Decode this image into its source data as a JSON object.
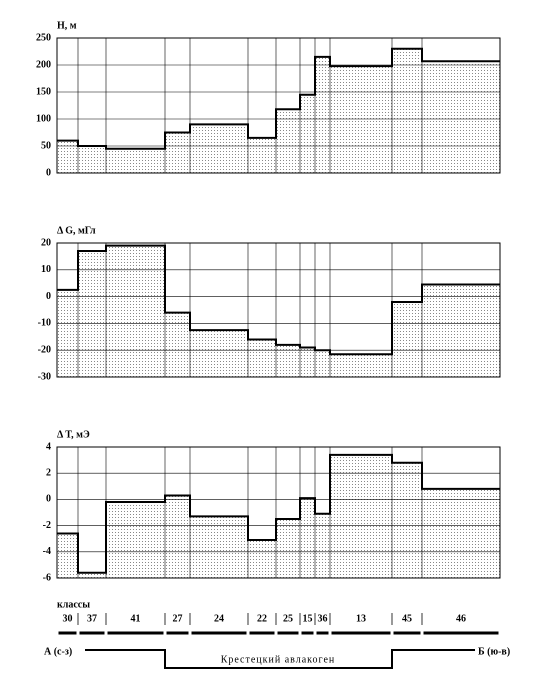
{
  "chart_data": [
    {
      "type": "step",
      "title": "H, м",
      "values": [
        60,
        50,
        45,
        75,
        90,
        65,
        118,
        145,
        215,
        198,
        230,
        207
      ],
      "ylim": [
        0,
        250
      ],
      "yticks": [
        0,
        50,
        100,
        150,
        200,
        250
      ],
      "grid": true,
      "color": "#000000"
    },
    {
      "type": "step",
      "title": "Δ G, мГл",
      "values": [
        2.5,
        17,
        19,
        -6,
        -12.5,
        -16,
        -18,
        -19,
        -20,
        -21.5,
        -2,
        4.5
      ],
      "ylim": [
        -30,
        20
      ],
      "yticks": [
        -30,
        -20,
        -10,
        0,
        10,
        20
      ],
      "grid": true,
      "color": "#000000"
    },
    {
      "type": "step",
      "title": "Δ T, мЭ",
      "values": [
        -2.6,
        -5.6,
        -0.2,
        0.3,
        -1.3,
        -3.1,
        -1.5,
        0.1,
        -1.1,
        3.4,
        2.8,
        0.8
      ],
      "ylim": [
        -6,
        4
      ],
      "yticks": [
        -6,
        -4,
        -2,
        0,
        2,
        4
      ],
      "grid": true,
      "color": "#000000"
    }
  ],
  "classes": {
    "label": "классы",
    "categories": [
      "30",
      "37",
      "41",
      "27",
      "24",
      "22",
      "25",
      "15",
      "36",
      "13",
      "45",
      "46"
    ]
  },
  "profile": {
    "left": "А (с-з)",
    "right": "Б (ю-в)",
    "feature": "Крестецкий   авлакоген"
  }
}
